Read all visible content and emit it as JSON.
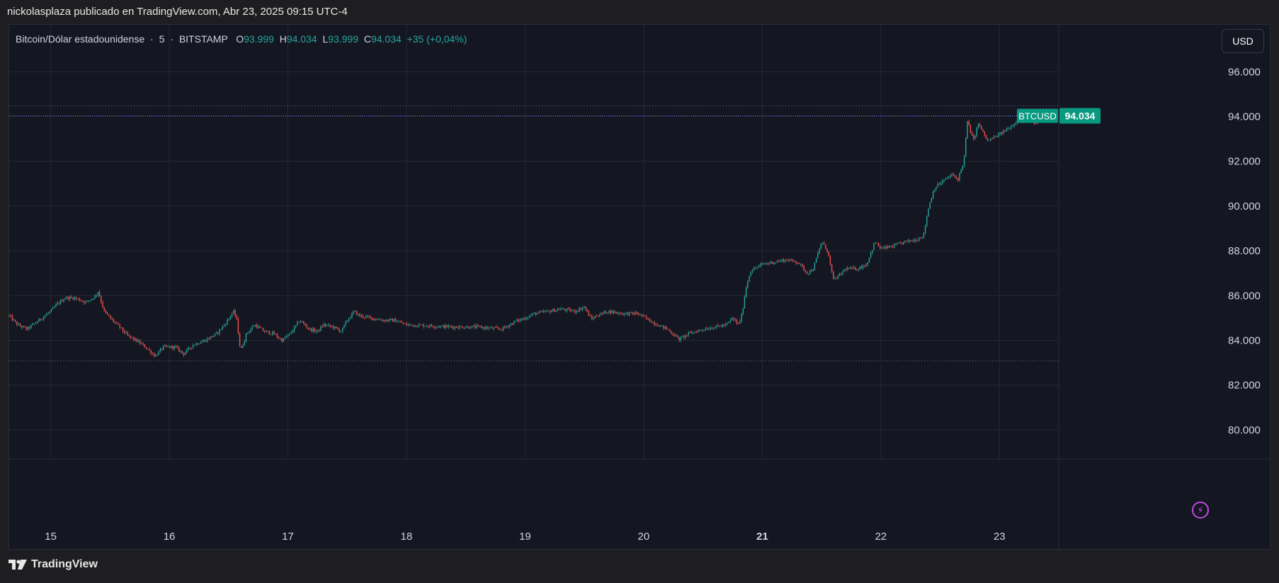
{
  "header": {
    "publisher_line": "nickolasplaza publicado en TradingView.com, Abr 23, 2025 09:15 UTC-4"
  },
  "legend": {
    "symbol": "Bitcoin/Dólar estadounidense",
    "interval": "5",
    "exchange": "BITSTAMP",
    "o_label": "O",
    "o_value": "93.999",
    "h_label": "H",
    "h_value": "94.034",
    "l_label": "L",
    "l_value": "93.999",
    "c_label": "C",
    "c_value": "94.034",
    "change": "+35 (+0,04%)"
  },
  "currency_button": "USD",
  "footer": {
    "brand": "TradingView"
  },
  "colors": {
    "up": "#26a69a",
    "down": "#ef5350",
    "grid": "#242833",
    "price_line": "#7b6ff0",
    "badge_bg": "#089981"
  },
  "chart_data": {
    "type": "candlestick",
    "symbol_badge": "BTCUSD",
    "last_price_label": "94.034",
    "last_price": 94034,
    "dotted_lines": [
      94500,
      94034,
      83100
    ],
    "y_ticks": [
      {
        "value": 96000,
        "label": "96.000"
      },
      {
        "value": 94000,
        "label": "94.000"
      },
      {
        "value": 92000,
        "label": "92.000"
      },
      {
        "value": 90000,
        "label": "90.000"
      },
      {
        "value": 88000,
        "label": "88.000"
      },
      {
        "value": 86000,
        "label": "86.000"
      },
      {
        "value": 84000,
        "label": "84.000"
      },
      {
        "value": 82000,
        "label": "82.000"
      },
      {
        "value": 80000,
        "label": "80.000"
      }
    ],
    "ylim": [
      78700,
      98100
    ],
    "x_ticks": [
      {
        "day": 15,
        "label": "15",
        "bold": false
      },
      {
        "day": 16,
        "label": "16",
        "bold": false
      },
      {
        "day": 17,
        "label": "17",
        "bold": false
      },
      {
        "day": 18,
        "label": "18",
        "bold": false
      },
      {
        "day": 19,
        "label": "19",
        "bold": false
      },
      {
        "day": 20,
        "label": "20",
        "bold": false
      },
      {
        "day": 21,
        "label": "21",
        "bold": true
      },
      {
        "day": 22,
        "label": "22",
        "bold": false
      },
      {
        "day": 23,
        "label": "23",
        "bold": false
      }
    ],
    "xlim": [
      14.65,
      23.5
    ],
    "price_path": [
      [
        14.65,
        85100
      ],
      [
        14.72,
        84700
      ],
      [
        14.8,
        84500
      ],
      [
        14.9,
        84900
      ],
      [
        15.0,
        85300
      ],
      [
        15.05,
        85600
      ],
      [
        15.12,
        85900
      ],
      [
        15.2,
        85900
      ],
      [
        15.3,
        85700
      ],
      [
        15.38,
        86000
      ],
      [
        15.4,
        86200
      ],
      [
        15.45,
        85300
      ],
      [
        15.5,
        85000
      ],
      [
        15.58,
        84600
      ],
      [
        15.65,
        84200
      ],
      [
        15.72,
        84000
      ],
      [
        15.8,
        83700
      ],
      [
        15.88,
        83300
      ],
      [
        15.95,
        83700
      ],
      [
        16.05,
        83700
      ],
      [
        16.12,
        83400
      ],
      [
        16.2,
        83800
      ],
      [
        16.3,
        84000
      ],
      [
        16.4,
        84300
      ],
      [
        16.48,
        84800
      ],
      [
        16.54,
        85300
      ],
      [
        16.57,
        84900
      ],
      [
        16.6,
        83500
      ],
      [
        16.65,
        84300
      ],
      [
        16.72,
        84700
      ],
      [
        16.8,
        84400
      ],
      [
        16.88,
        84300
      ],
      [
        16.95,
        84000
      ],
      [
        17.02,
        84300
      ],
      [
        17.1,
        84900
      ],
      [
        17.18,
        84500
      ],
      [
        17.25,
        84400
      ],
      [
        17.3,
        84700
      ],
      [
        17.38,
        84600
      ],
      [
        17.45,
        84400
      ],
      [
        17.5,
        84900
      ],
      [
        17.56,
        85300
      ],
      [
        17.6,
        85100
      ],
      [
        17.7,
        85000
      ],
      [
        17.8,
        84900
      ],
      [
        17.9,
        84900
      ],
      [
        18.0,
        84700
      ],
      [
        18.2,
        84650
      ],
      [
        18.4,
        84600
      ],
      [
        18.6,
        84600
      ],
      [
        18.8,
        84500
      ],
      [
        18.92,
        84850
      ],
      [
        19.0,
        85000
      ],
      [
        19.08,
        85200
      ],
      [
        19.2,
        85300
      ],
      [
        19.3,
        85400
      ],
      [
        19.42,
        85300
      ],
      [
        19.5,
        85500
      ],
      [
        19.53,
        85200
      ],
      [
        19.56,
        84950
      ],
      [
        19.6,
        85100
      ],
      [
        19.7,
        85300
      ],
      [
        19.82,
        85200
      ],
      [
        19.95,
        85200
      ],
      [
        20.08,
        84800
      ],
      [
        20.2,
        84500
      ],
      [
        20.3,
        84050
      ],
      [
        20.38,
        84300
      ],
      [
        20.5,
        84500
      ],
      [
        20.6,
        84600
      ],
      [
        20.7,
        84700
      ],
      [
        20.75,
        85000
      ],
      [
        20.8,
        84700
      ],
      [
        20.83,
        85200
      ],
      [
        20.86,
        86300
      ],
      [
        20.9,
        87100
      ],
      [
        21.0,
        87400
      ],
      [
        21.1,
        87500
      ],
      [
        21.2,
        87600
      ],
      [
        21.3,
        87500
      ],
      [
        21.38,
        87000
      ],
      [
        21.43,
        87200
      ],
      [
        21.5,
        88400
      ],
      [
        21.55,
        88000
      ],
      [
        21.6,
        86700
      ],
      [
        21.65,
        86900
      ],
      [
        21.7,
        87200
      ],
      [
        21.8,
        87200
      ],
      [
        21.88,
        87400
      ],
      [
        21.95,
        88400
      ],
      [
        22.0,
        88100
      ],
      [
        22.1,
        88200
      ],
      [
        22.2,
        88400
      ],
      [
        22.3,
        88500
      ],
      [
        22.36,
        88700
      ],
      [
        22.4,
        89900
      ],
      [
        22.45,
        90800
      ],
      [
        22.52,
        91100
      ],
      [
        22.6,
        91400
      ],
      [
        22.65,
        91200
      ],
      [
        22.7,
        92000
      ],
      [
        22.73,
        93800
      ],
      [
        22.78,
        92900
      ],
      [
        22.82,
        93700
      ],
      [
        22.9,
        92900
      ],
      [
        23.0,
        93200
      ],
      [
        23.08,
        93500
      ],
      [
        23.13,
        93700
      ],
      [
        23.18,
        94200
      ],
      [
        23.25,
        94000
      ],
      [
        23.3,
        93600
      ],
      [
        23.35,
        94034
      ]
    ]
  }
}
